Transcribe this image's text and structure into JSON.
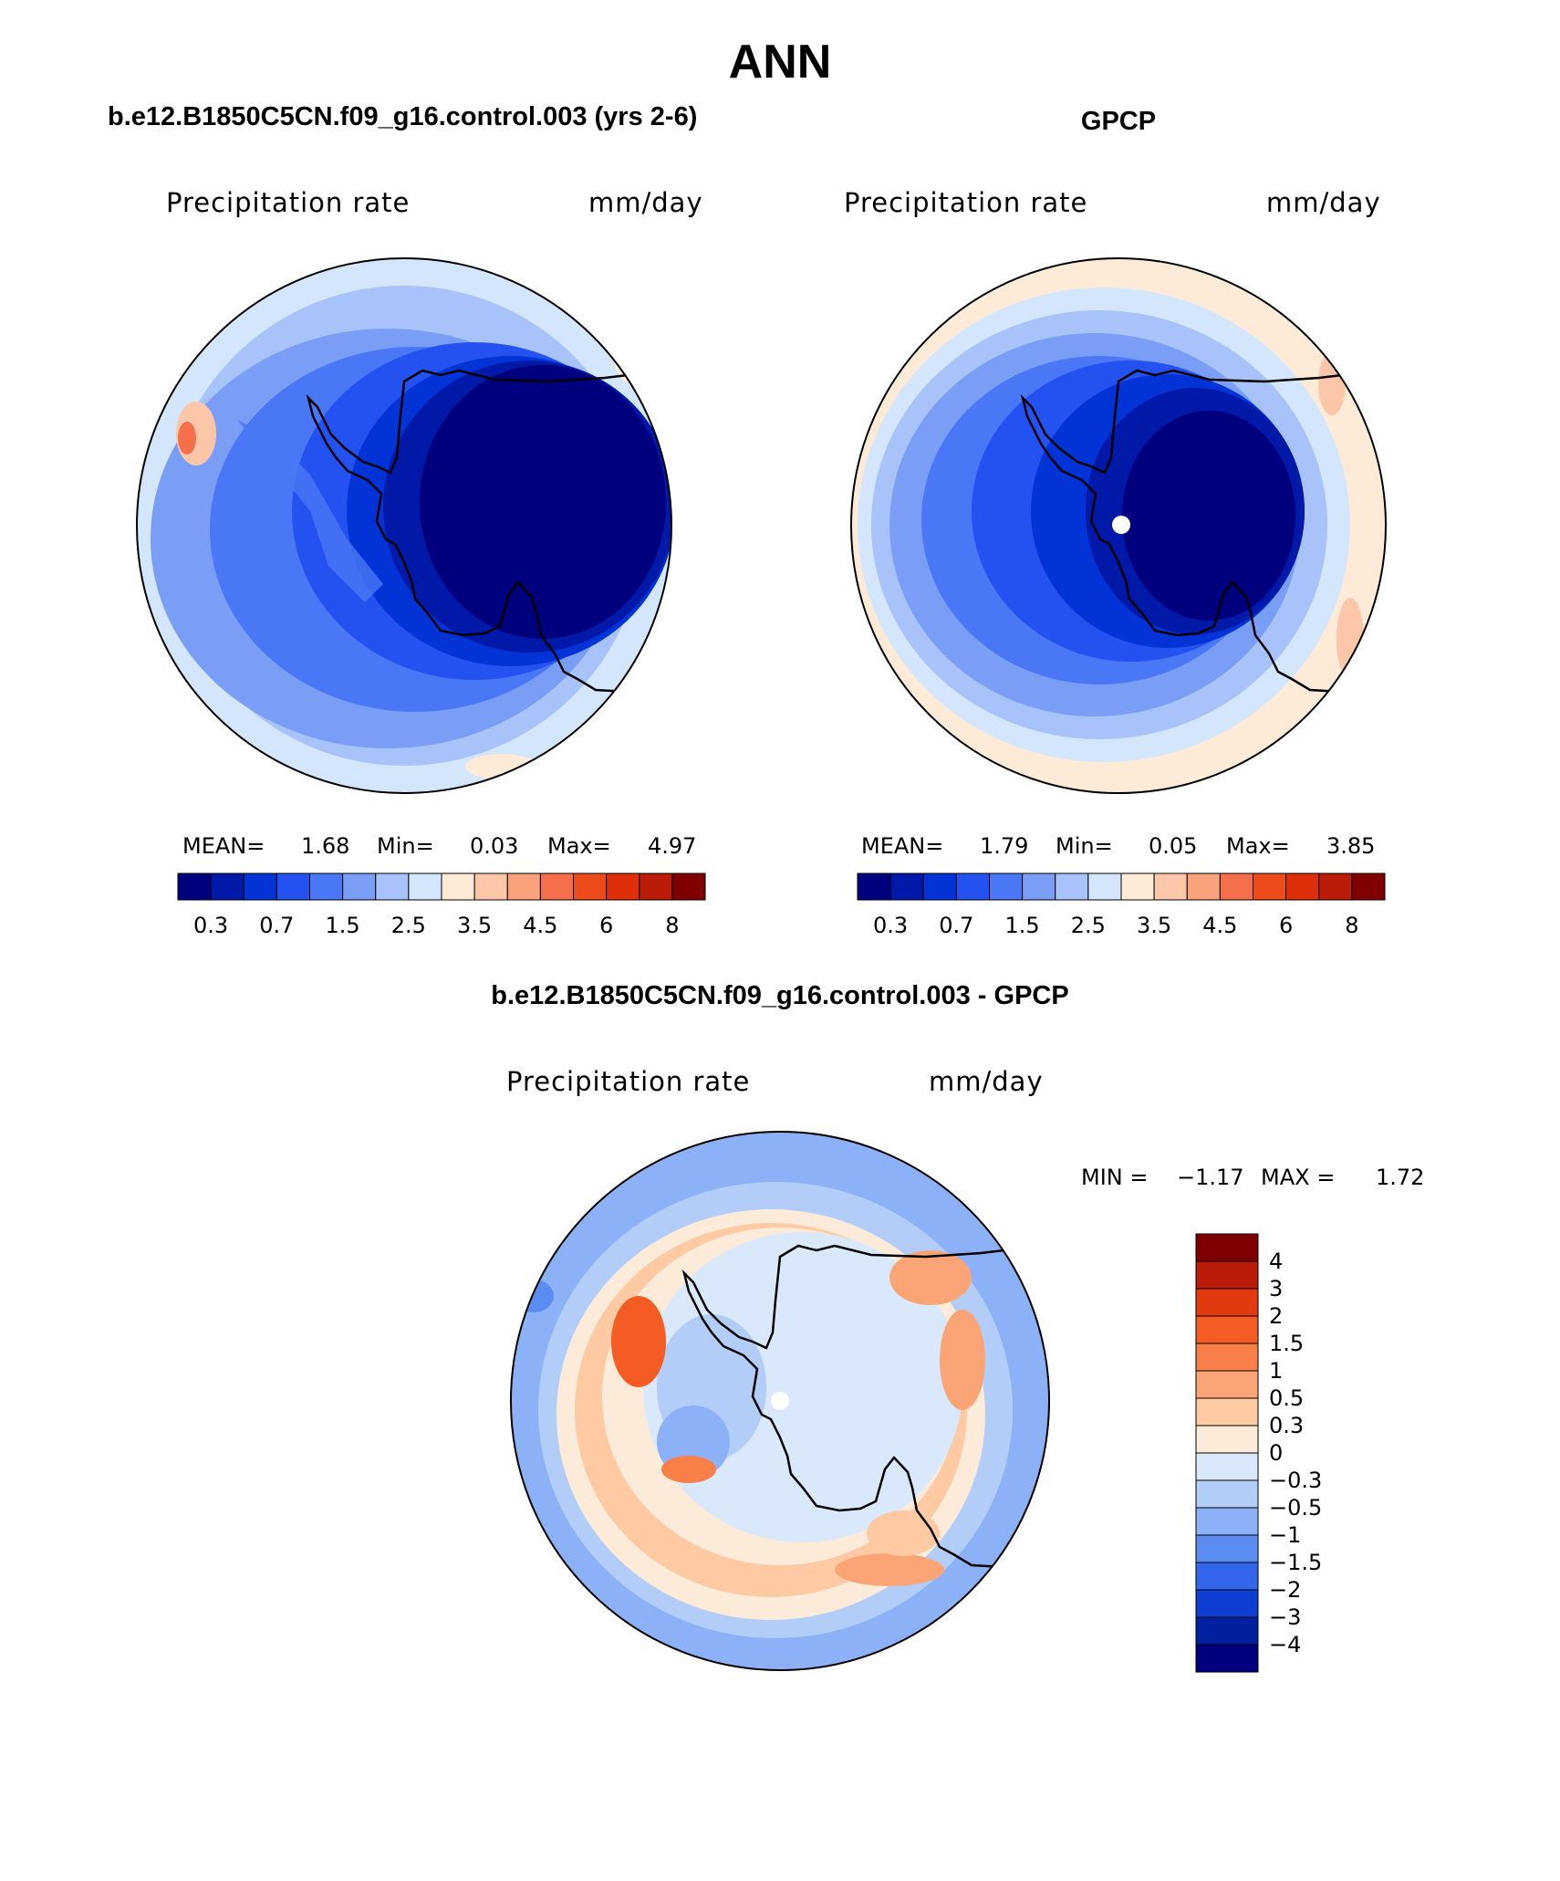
{
  "figure": {
    "title": "ANN",
    "diff_title": "b.e12.B1850C5CN.f09_g16.control.003 - GPCP"
  },
  "panels": [
    {
      "title": "b.e12.B1850C5CN.f09_g16.control.003 (yrs 2-6)",
      "left_label": "Precipitation rate",
      "right_label": "mm/day",
      "stats": {
        "mean_label": "MEAN=",
        "mean": "1.68",
        "min_label": "Min=",
        "min": "0.03",
        "max_label": "Max=",
        "max": "4.97"
      }
    },
    {
      "title": "GPCP",
      "left_label": "Precipitation rate",
      "right_label": "mm/day",
      "stats": {
        "mean_label": "MEAN=",
        "mean": "1.79",
        "min_label": "Min=",
        "min": "0.05",
        "max_label": "Max=",
        "max": "3.85"
      }
    }
  ],
  "diff_panel": {
    "left_label": "Precipitation rate",
    "right_label": "mm/day",
    "stats": {
      "min_label": "MIN =",
      "min": "−1.17",
      "max_label": "MAX =",
      "max": "1.72"
    }
  },
  "colorbars": {
    "abs_colors": [
      "#00007f",
      "#0019a8",
      "#0133d7",
      "#2452f0",
      "#4a77f5",
      "#7a9ef6",
      "#a8c3fa",
      "#d4e6fc",
      "#fdebd8",
      "#fcc6a8",
      "#f9a27b",
      "#f5704a",
      "#ee4b1c",
      "#de2f0a",
      "#ba1c07",
      "#7f0000"
    ],
    "abs_ticks": [
      "0.3",
      "0.7",
      "1.5",
      "2.5",
      "3.5",
      "4.5",
      "6",
      "8"
    ],
    "diff_colors": [
      "#7f0000",
      "#ba1c07",
      "#e23a0e",
      "#f55c24",
      "#f88048",
      "#fba577",
      "#fdcaa4",
      "#fcebd8",
      "#d9e8fa",
      "#b2cdf8",
      "#8db1f6",
      "#5b8cf1",
      "#3366ed",
      "#0f3fd2",
      "#0020a0",
      "#00007f"
    ],
    "diff_ticks": [
      "4",
      "3",
      "2",
      "1.5",
      "1",
      "0.5",
      "0.3",
      "0",
      "−0.3",
      "−0.5",
      "−1",
      "−1.5",
      "−2",
      "−3",
      "−4"
    ]
  }
}
